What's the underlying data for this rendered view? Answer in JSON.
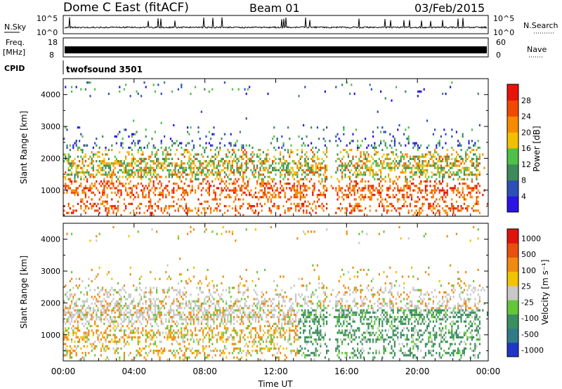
{
  "header": {
    "station": "Dome C East (fitACF)",
    "beam": "Beam 01",
    "date": "03/Feb/2015"
  },
  "summary": {
    "nsky_label": "N.Sky",
    "nsearch_label": "N.Search",
    "freq_label": "Freq.",
    "freq_unit": "[MHz]",
    "nave_label": "Nave",
    "cpid_label": "CPID",
    "cpid_value": "twofsound 3501",
    "noise_ticks": [
      "10^5",
      "10^0"
    ],
    "noise_right_ticks": [
      "10^5",
      "10^0"
    ],
    "freq_ticks": [
      "18",
      "8"
    ],
    "nave_ticks": [
      "60",
      "0"
    ]
  },
  "chart_data": [
    {
      "type": "heatmap",
      "name": "power",
      "ylabel": "Slant Range [km]",
      "ylim": [
        180,
        4500
      ],
      "yticks": [
        1000,
        2000,
        3000,
        4000
      ],
      "xlim": [
        0,
        24
      ],
      "colorbar_label": "Power [dB]",
      "colorbar_ticks": [
        "4",
        "8",
        "12",
        "16",
        "20",
        "24",
        "28"
      ],
      "colors": [
        "#2c14e6",
        "#2e50b6",
        "#3f8a5a",
        "#4fc048",
        "#f2c000",
        "#f78b00",
        "#f04a00",
        "#e8140c"
      ]
    },
    {
      "type": "heatmap",
      "name": "velocity",
      "ylabel": "Slant Range [km]",
      "ylim": [
        180,
        4500
      ],
      "yticks": [
        1000,
        2000,
        3000,
        4000
      ],
      "xlim": [
        0,
        24
      ],
      "colorbar_label": "Velocity [m s⁻¹]",
      "colorbar_ticks": [
        "1000",
        "500",
        "100",
        "25",
        "-25",
        "-100",
        "-500",
        "-1000"
      ],
      "colors": [
        "#1f36c6",
        "#2f7c88",
        "#3b8f5e",
        "#66c63a",
        "#c8c8c8",
        "#f2c400",
        "#f08a12",
        "#e85010",
        "#e0140e"
      ]
    }
  ],
  "xaxis": {
    "label": "Time UT",
    "ticks": [
      "00:00",
      "04:00",
      "08:00",
      "12:00",
      "16:00",
      "20:00",
      "00:00"
    ]
  }
}
